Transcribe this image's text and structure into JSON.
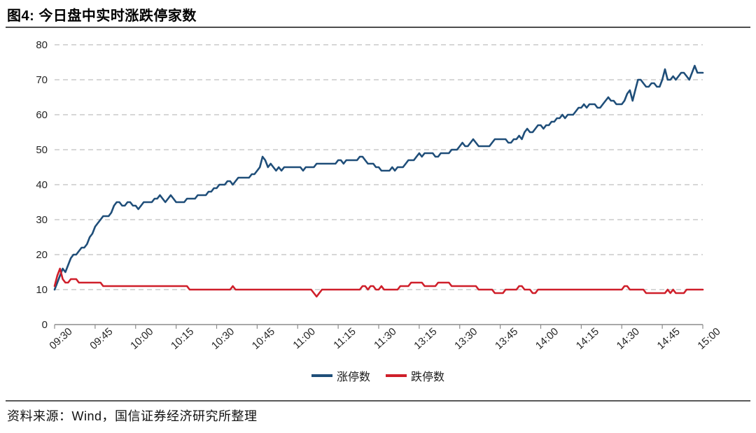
{
  "figure": {
    "title": "图4: 今日盘中实时涨跌停家数",
    "source": "资料来源：Wind，国信证券经济研究所整理"
  },
  "chart_data": {
    "type": "line",
    "title": "图4: 今日盘中实时涨跌停家数",
    "grid": "horizontal-dashed",
    "legend_position": "bottom-center",
    "x_axis": {
      "tick_labels": [
        "09:30",
        "09:45",
        "10:00",
        "10:15",
        "10:30",
        "10:45",
        "11:00",
        "11:15",
        "11:30",
        "13:15",
        "13:30",
        "13:45",
        "14:00",
        "14:15",
        "14:30",
        "14:45",
        "15:00"
      ],
      "tick_indices": [
        0,
        15,
        30,
        45,
        60,
        75,
        90,
        105,
        120,
        135,
        150,
        165,
        180,
        195,
        210,
        225,
        240
      ]
    },
    "y_axis": {
      "min": 0,
      "max": 80,
      "step": 10,
      "ticks": [
        0,
        10,
        20,
        30,
        40,
        50,
        60,
        70,
        80
      ]
    },
    "series": [
      {
        "name": "涨停数",
        "color": "#1f4e79",
        "values": [
          10,
          12,
          14,
          16,
          15,
          17,
          19,
          20,
          20,
          21,
          22,
          22,
          23,
          25,
          26,
          28,
          29,
          30,
          31,
          31,
          31,
          32,
          34,
          35,
          35,
          34,
          34,
          35,
          35,
          34,
          34,
          33,
          34,
          35,
          35,
          35,
          35,
          36,
          36,
          37,
          36,
          35,
          36,
          37,
          36,
          35,
          35,
          35,
          35,
          36,
          36,
          36,
          36,
          37,
          37,
          37,
          37,
          38,
          38,
          39,
          39,
          40,
          40,
          40,
          41,
          41,
          40,
          41,
          42,
          42,
          42,
          42,
          42,
          43,
          43,
          44,
          45,
          48,
          47,
          45,
          46,
          45,
          44,
          45,
          44,
          45,
          45,
          45,
          45,
          45,
          45,
          45,
          44,
          45,
          45,
          45,
          45,
          46,
          46,
          46,
          46,
          46,
          46,
          46,
          46,
          47,
          47,
          46,
          47,
          47,
          47,
          47,
          47,
          48,
          48,
          47,
          46,
          46,
          46,
          45,
          45,
          44,
          44,
          44,
          44,
          45,
          44,
          45,
          45,
          45,
          46,
          47,
          47,
          47,
          48,
          49,
          48,
          49,
          49,
          49,
          49,
          48,
          48,
          49,
          49,
          49,
          49,
          50,
          50,
          50,
          51,
          52,
          51,
          51,
          52,
          53,
          52,
          51,
          51,
          51,
          51,
          51,
          52,
          53,
          53,
          53,
          53,
          53,
          52,
          52,
          53,
          53,
          54,
          53,
          55,
          56,
          55,
          55,
          56,
          57,
          57,
          56,
          57,
          57,
          58,
          58,
          59,
          59,
          60,
          59,
          60,
          60,
          60,
          61,
          62,
          62,
          63,
          62,
          63,
          63,
          63,
          62,
          62,
          63,
          64,
          65,
          64,
          64,
          63,
          63,
          63,
          64,
          66,
          67,
          64,
          67,
          70,
          70,
          69,
          68,
          68,
          69,
          69,
          68,
          68,
          70,
          73,
          70,
          70,
          71,
          70,
          71,
          72,
          72,
          71,
          70,
          72,
          74,
          72,
          72,
          72
        ]
      },
      {
        "name": "跌停数",
        "color": "#cf1f2a",
        "values": [
          11,
          14,
          16,
          13,
          12,
          12,
          13,
          13,
          13,
          12,
          12,
          12,
          12,
          12,
          12,
          12,
          12,
          12,
          11,
          11,
          11,
          11,
          11,
          11,
          11,
          11,
          11,
          11,
          11,
          11,
          11,
          11,
          11,
          11,
          11,
          11,
          11,
          11,
          11,
          11,
          11,
          11,
          11,
          11,
          11,
          11,
          11,
          11,
          11,
          11,
          10,
          10,
          10,
          10,
          10,
          10,
          10,
          10,
          10,
          10,
          10,
          10,
          10,
          10,
          10,
          10,
          11,
          10,
          10,
          10,
          10,
          10,
          10,
          10,
          10,
          10,
          10,
          10,
          10,
          10,
          10,
          10,
          10,
          10,
          10,
          10,
          10,
          10,
          10,
          10,
          10,
          10,
          10,
          10,
          10,
          10,
          9,
          8,
          9,
          10,
          10,
          10,
          10,
          10,
          10,
          10,
          10,
          10,
          10,
          10,
          10,
          10,
          10,
          10,
          11,
          11,
          10,
          11,
          11,
          10,
          10,
          11,
          10,
          10,
          10,
          10,
          10,
          10,
          11,
          11,
          11,
          11,
          12,
          12,
          12,
          12,
          12,
          11,
          11,
          11,
          11,
          11,
          12,
          12,
          12,
          12,
          12,
          11,
          11,
          11,
          11,
          11,
          11,
          11,
          11,
          11,
          11,
          10,
          10,
          10,
          10,
          10,
          10,
          9,
          9,
          9,
          9,
          10,
          10,
          10,
          10,
          10,
          11,
          11,
          10,
          10,
          10,
          9,
          9,
          10,
          10,
          10,
          10,
          10,
          10,
          10,
          10,
          10,
          10,
          10,
          10,
          10,
          10,
          10,
          10,
          10,
          10,
          10,
          10,
          10,
          10,
          10,
          10,
          10,
          10,
          10,
          10,
          10,
          10,
          10,
          10,
          11,
          11,
          10,
          10,
          10,
          10,
          10,
          10,
          9,
          9,
          9,
          9,
          9,
          9,
          9,
          9,
          10,
          9,
          10,
          9,
          9,
          9,
          9,
          10,
          10,
          10,
          10,
          10,
          10,
          10
        ]
      }
    ]
  }
}
